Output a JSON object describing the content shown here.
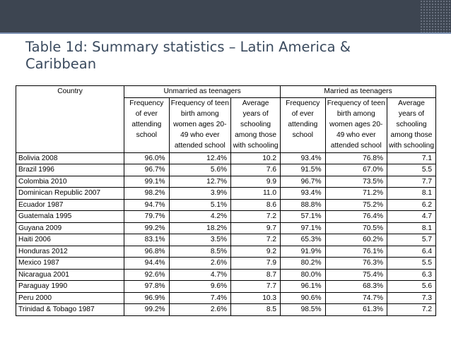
{
  "slide": {
    "title": "Table 1d: Summary statistics – Latin America & Caribbean"
  },
  "table": {
    "header": {
      "country": "Country",
      "group_unmarried": "Unmarried as teenagers",
      "group_married": "Married as teenagers",
      "col_attending": "Frequency of ever attending school",
      "col_birth": "Frequency of teen birth among women ages 20-49 who ever attended school",
      "col_years": "Average years of schooling among those with schooling"
    },
    "rows": [
      {
        "country": "Bolivia 2008",
        "u_attend": "96.0%",
        "u_birth": "12.4%",
        "u_years": "10.2",
        "m_attend": "93.4%",
        "m_birth": "76.8%",
        "m_years": "7.1"
      },
      {
        "country": "Brazil 1996",
        "u_attend": "96.7%",
        "u_birth": "5.6%",
        "u_years": "7.6",
        "m_attend": "91.5%",
        "m_birth": "67.0%",
        "m_years": "5.5"
      },
      {
        "country": "Colombia 2010",
        "u_attend": "99.1%",
        "u_birth": "12.7%",
        "u_years": "9.9",
        "m_attend": "96.7%",
        "m_birth": "73.5%",
        "m_years": "7.7"
      },
      {
        "country": "Dominican Republic 2007",
        "u_attend": "98.2%",
        "u_birth": "3.9%",
        "u_years": "11.0",
        "m_attend": "93.4%",
        "m_birth": "71.2%",
        "m_years": "8.1"
      },
      {
        "country": "Ecuador 1987",
        "u_attend": "94.7%",
        "u_birth": "5.1%",
        "u_years": "8.6",
        "m_attend": "88.8%",
        "m_birth": "75.2%",
        "m_years": "6.2"
      },
      {
        "country": "Guatemala 1995",
        "u_attend": "79.7%",
        "u_birth": "4.2%",
        "u_years": "7.2",
        "m_attend": "57.1%",
        "m_birth": "76.4%",
        "m_years": "4.7"
      },
      {
        "country": "Guyana 2009",
        "u_attend": "99.2%",
        "u_birth": "18.2%",
        "u_years": "9.7",
        "m_attend": "97.1%",
        "m_birth": "70.5%",
        "m_years": "8.1"
      },
      {
        "country": "Haiti 2006",
        "u_attend": "83.1%",
        "u_birth": "3.5%",
        "u_years": "7.2",
        "m_attend": "65.3%",
        "m_birth": "60.2%",
        "m_years": "5.7"
      },
      {
        "country": "Honduras 2012",
        "u_attend": "96.8%",
        "u_birth": "8.5%",
        "u_years": "9.2",
        "m_attend": "91.9%",
        "m_birth": "76.1%",
        "m_years": "6.4"
      },
      {
        "country": "Mexico 1987",
        "u_attend": "94.4%",
        "u_birth": "2.6%",
        "u_years": "7.9",
        "m_attend": "80.2%",
        "m_birth": "76.3%",
        "m_years": "5.5"
      },
      {
        "country": "Nicaragua 2001",
        "u_attend": "92.6%",
        "u_birth": "4.7%",
        "u_years": "8.7",
        "m_attend": "80.0%",
        "m_birth": "75.4%",
        "m_years": "6.3"
      },
      {
        "country": "Paraguay 1990",
        "u_attend": "97.8%",
        "u_birth": "9.6%",
        "u_years": "7.7",
        "m_attend": "96.1%",
        "m_birth": "68.3%",
        "m_years": "5.6"
      },
      {
        "country": "Peru 2000",
        "u_attend": "96.9%",
        "u_birth": "7.4%",
        "u_years": "10.3",
        "m_attend": "90.6%",
        "m_birth": "74.7%",
        "m_years": "7.3"
      },
      {
        "country": "Trinidad & Tobago 1987",
        "u_attend": "99.2%",
        "u_birth": "2.6%",
        "u_years": "8.5",
        "m_attend": "98.5%",
        "m_birth": "61.3%",
        "m_years": "7.2"
      }
    ]
  }
}
